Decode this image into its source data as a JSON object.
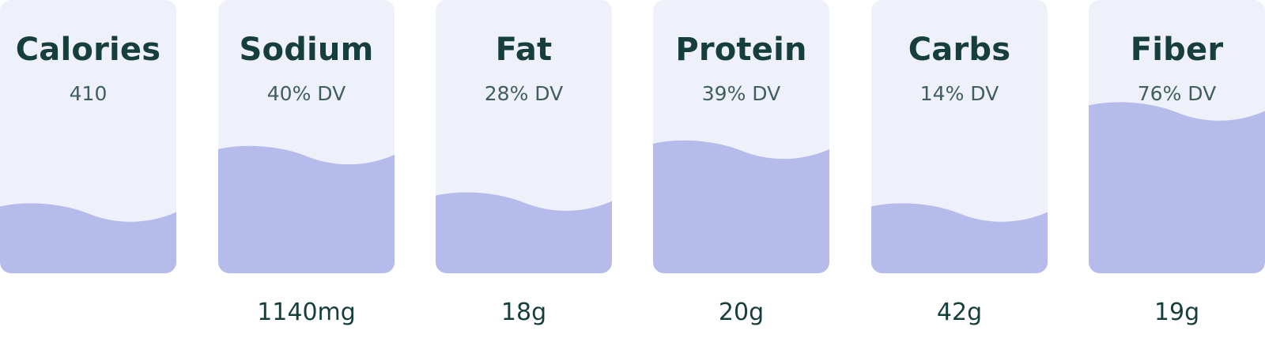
{
  "colors": {
    "card_bg": "#eef0fa",
    "fill": "#b5bceb",
    "title": "#163e3a",
    "subtitle": "#3f5f5c"
  },
  "nutrients": [
    {
      "name": "Calories",
      "dv_text": "410",
      "amount": "",
      "fill_fraction": 0.25
    },
    {
      "name": "Sodium",
      "dv_text": "40% DV",
      "amount": "1140mg",
      "fill_fraction": 0.46
    },
    {
      "name": "Fat",
      "dv_text": "28% DV",
      "amount": "18g",
      "fill_fraction": 0.29
    },
    {
      "name": "Protein",
      "dv_text": "39% DV",
      "amount": "20g",
      "fill_fraction": 0.48
    },
    {
      "name": "Carbs",
      "dv_text": "14% DV",
      "amount": "42g",
      "fill_fraction": 0.25
    },
    {
      "name": "Fiber",
      "dv_text": "76% DV",
      "amount": "19g",
      "fill_fraction": 0.62
    }
  ]
}
